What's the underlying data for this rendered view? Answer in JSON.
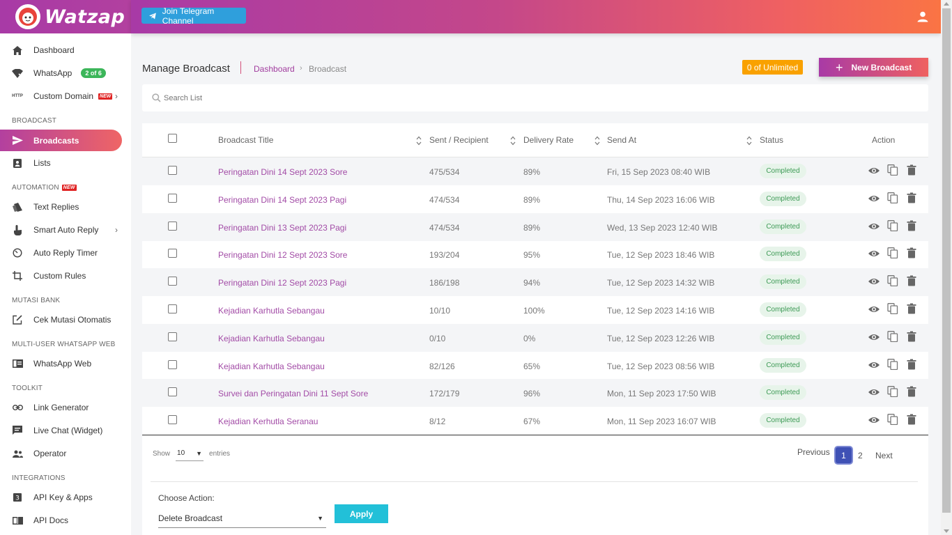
{
  "app": {
    "name": "Watzap"
  },
  "topbar": {
    "telegram_label": "Join Telegram Channel"
  },
  "sidebar": {
    "items": [
      {
        "label": "Dashboard"
      },
      {
        "label": "WhatsApp",
        "badge": "2 of 6"
      },
      {
        "label": "Custom Domain",
        "badge": "NEW"
      },
      {
        "label": "Broadcasts"
      },
      {
        "label": "Lists"
      },
      {
        "label": "Text Replies"
      },
      {
        "label": "Smart Auto Reply"
      },
      {
        "label": "Auto Reply Timer"
      },
      {
        "label": "Custom Rules"
      },
      {
        "label": "Cek Mutasi Otomatis"
      },
      {
        "label": "WhatsApp Web"
      },
      {
        "label": "Link Generator"
      },
      {
        "label": "Live Chat (Widget)"
      },
      {
        "label": "Operator"
      },
      {
        "label": "API Key & Apps"
      },
      {
        "label": "API Docs"
      }
    ],
    "sections": {
      "broadcast": "BROADCAST",
      "automation": "AUTOMATION",
      "automation_badge": "NEW",
      "mutasi": "MUTASI BANK",
      "multiuser": "MULTI-USER WHATSAPP WEB",
      "toolkit": "TOOLKIT",
      "integrations": "INTEGRATIONS"
    },
    "icon_http": "HTTP"
  },
  "header": {
    "title": "Manage Broadcast",
    "breadcrumb": [
      "Dashboard",
      "Broadcast"
    ],
    "quota": "0 of Unlimited",
    "new_button": "New Broadcast"
  },
  "search": {
    "placeholder": "Search List"
  },
  "table": {
    "columns": [
      "Broadcast Title",
      "Sent / Recipient",
      "Delivery Rate",
      "Send At",
      "Status",
      "Action"
    ],
    "rows": [
      {
        "title": "Peringatan Dini 14 Sept 2023 Sore",
        "sent": "475/534",
        "rate": "89%",
        "send_at": "Fri, 15 Sep 2023 08:40 WIB",
        "status": "Completed"
      },
      {
        "title": "Peringatan Dini 14 Sept 2023 Pagi",
        "sent": "474/534",
        "rate": "89%",
        "send_at": "Thu, 14 Sep 2023 16:06 WIB",
        "status": "Completed"
      },
      {
        "title": "Peringatan Dini 13 Sept 2023 Pagi",
        "sent": "474/534",
        "rate": "89%",
        "send_at": "Wed, 13 Sep 2023 12:40 WIB",
        "status": "Completed"
      },
      {
        "title": "Peringatan Dini 12 Sept 2023 Sore",
        "sent": "193/204",
        "rate": "95%",
        "send_at": "Tue, 12 Sep 2023 18:46 WIB",
        "status": "Completed"
      },
      {
        "title": "Peringatan Dini 12 Sept 2023 Pagi",
        "sent": "186/198",
        "rate": "94%",
        "send_at": "Tue, 12 Sep 2023 14:32 WIB",
        "status": "Completed"
      },
      {
        "title": "Kejadian Karhutla Sebangau",
        "sent": "10/10",
        "rate": "100%",
        "send_at": "Tue, 12 Sep 2023 14:16 WIB",
        "status": "Completed"
      },
      {
        "title": "Kejadian Karhutla Sebangau",
        "sent": "0/10",
        "rate": "0%",
        "send_at": "Tue, 12 Sep 2023 12:26 WIB",
        "status": "Completed"
      },
      {
        "title": "Kejadian Karhutla Sebangau",
        "sent": "82/126",
        "rate": "65%",
        "send_at": "Tue, 12 Sep 2023 08:56 WIB",
        "status": "Completed"
      },
      {
        "title": "Survei dan Peringatan Dini 11 Sept Sore",
        "sent": "172/179",
        "rate": "96%",
        "send_at": "Mon, 11 Sep 2023 17:50 WIB",
        "status": "Completed"
      },
      {
        "title": "Kejadian Kerhutla Seranau",
        "sent": "8/12",
        "rate": "67%",
        "send_at": "Mon, 11 Sep 2023 16:07 WIB",
        "status": "Completed"
      }
    ]
  },
  "footer": {
    "show_label": "Show",
    "entries_value": "10",
    "entries_label": "entries",
    "pagination": {
      "previous": "Previous",
      "pages": [
        "1",
        "2"
      ],
      "current": "1",
      "next": "Next"
    },
    "choose_action_label": "Choose Action:",
    "action_value": "Delete Broadcast",
    "apply_label": "Apply"
  },
  "colors": {
    "brand_start": "#a83aa6",
    "brand_end": "#fa7444",
    "accent_link": "#a24ba6",
    "quota": "#f9a100",
    "apply": "#22c0d8",
    "status_completed": "#3d9a55"
  }
}
